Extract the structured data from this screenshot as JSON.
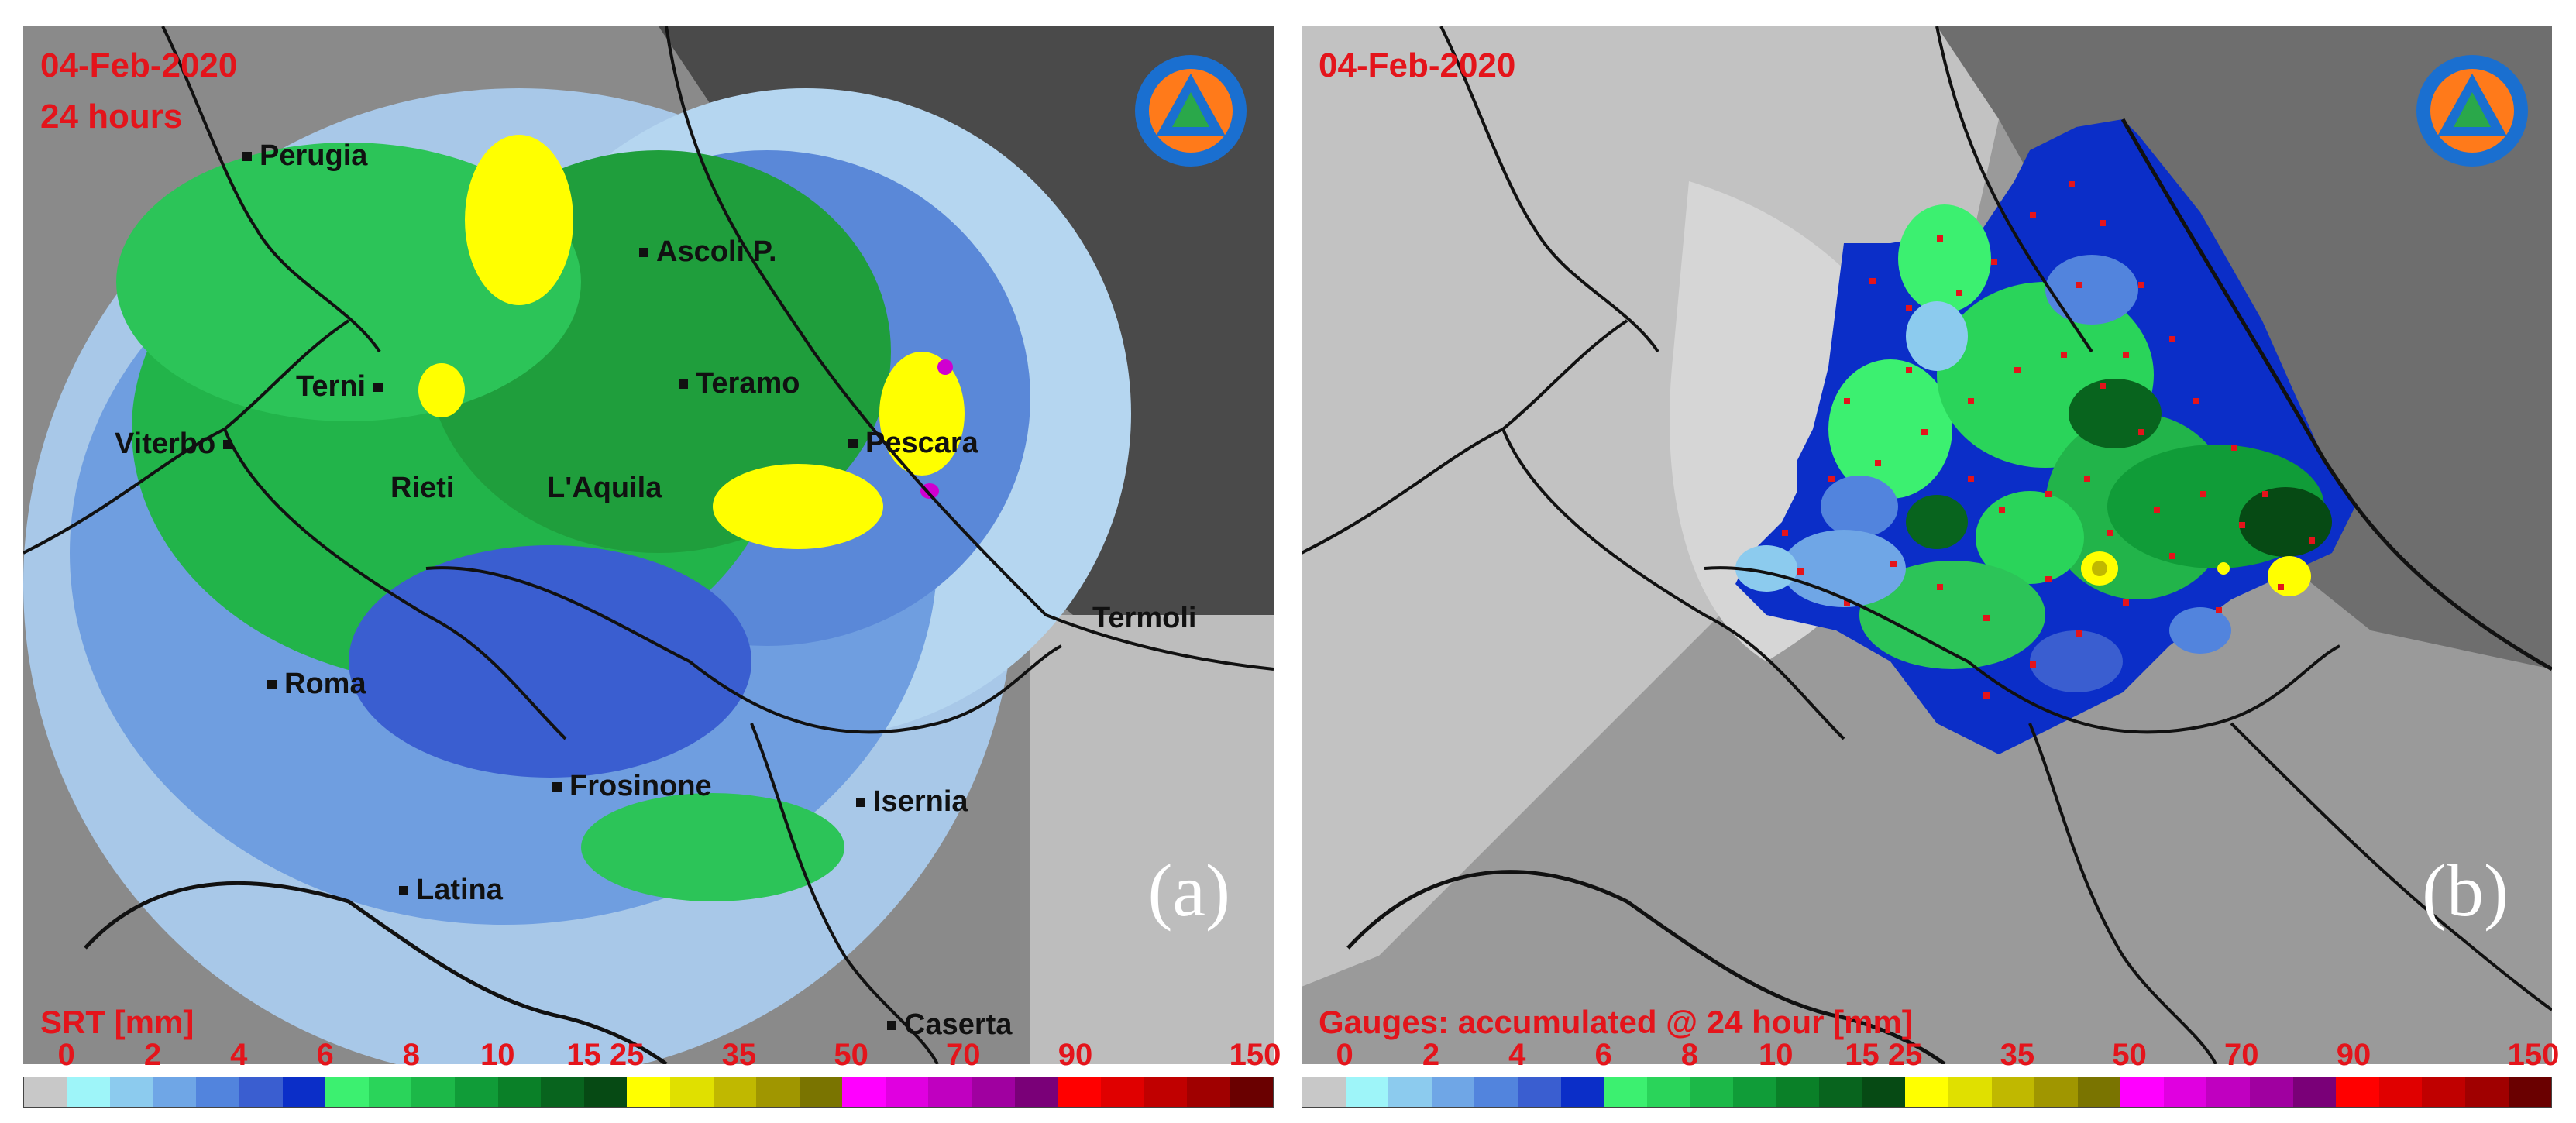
{
  "panel_a": {
    "date": "04-Feb-2020",
    "duration": "24 hours",
    "legend_title": "SRT [mm]",
    "panel_letter": "(a)",
    "logo_icon": "protezione-civile-logo",
    "cities": [
      "Perugia",
      "Ascoli P.",
      "Terni",
      "Teramo",
      "Viterbo",
      "Pescara",
      "Rieti",
      "L'Aquila",
      "Termoli",
      "Roma",
      "Frosinone",
      "Isernia",
      "Latina",
      "Caserta"
    ]
  },
  "panel_b": {
    "date": "04-Feb-2020",
    "legend_title": "Gauges: accumulated @ 24 hour [mm]",
    "panel_letter": "(b)",
    "logo_icon": "protezione-civile-logo"
  },
  "color_scale": {
    "labels": [
      "0",
      "2",
      "4",
      "6",
      "8",
      "10",
      "15",
      "25",
      "35",
      "50",
      "70",
      "90",
      "150"
    ],
    "colors": [
      "#c8c8c8",
      "#9ef5f9",
      "#8ccbee",
      "#6fa6e6",
      "#5284dd",
      "#3a5ed0",
      "#0b2ec8",
      "#3cf070",
      "#2ad45a",
      "#1cb848",
      "#109c38",
      "#0a8028",
      "#08641e",
      "#064a14",
      "#ffff00",
      "#e0e000",
      "#c0b800",
      "#a09600",
      "#7a7400",
      "#ff00ff",
      "#e000e0",
      "#c000c0",
      "#a000a0",
      "#7a0078",
      "#ff0000",
      "#e00000",
      "#c00000",
      "#a00000",
      "#6a0000"
    ]
  }
}
